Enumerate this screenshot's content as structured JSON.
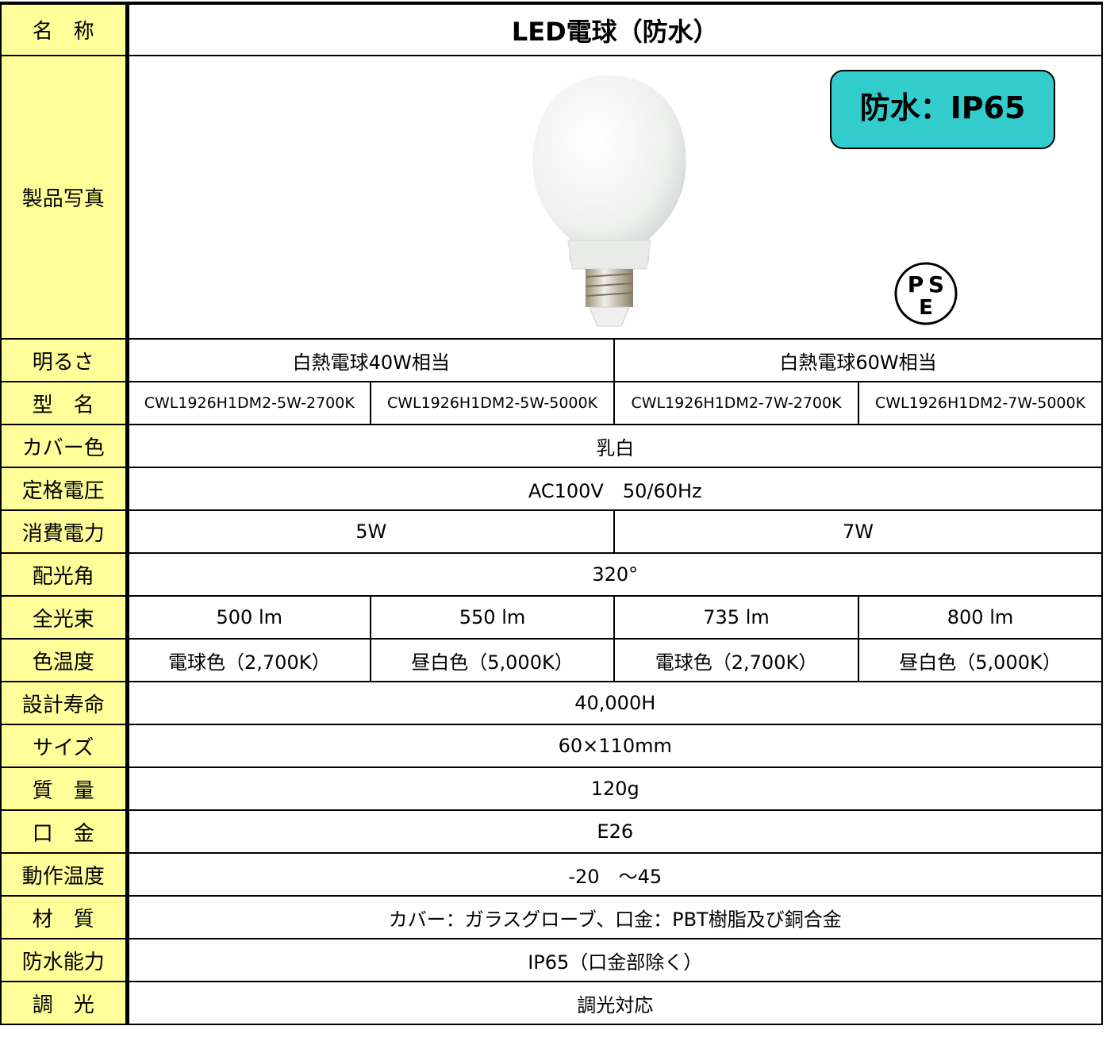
{
  "header": {
    "label": "名　称",
    "title": "LED電球（防水）"
  },
  "photo": {
    "label": "製品写真",
    "badge": "防水：IP65",
    "pse_mark": [
      "P",
      "S",
      "E"
    ]
  },
  "rows": [
    {
      "label": "明るさ",
      "cells": [
        "白熱電球40W相当",
        "白熱電球60W相当"
      ]
    },
    {
      "label": "型　名",
      "cells": [
        "CWL1926H1DM2-5W-2700K",
        "CWL1926H1DM2-5W-5000K",
        "CWL1926H1DM2-7W-2700K",
        "CWL1926H1DM2-7W-5000K"
      ]
    },
    {
      "label": "カバー色",
      "cells": [
        "乳白"
      ]
    },
    {
      "label": "定格電圧",
      "cells": [
        "AC100V　50/60Hz"
      ]
    },
    {
      "label": "消費電力",
      "cells": [
        "5W",
        "7W"
      ]
    },
    {
      "label": "配光角",
      "cells": [
        "320°"
      ]
    },
    {
      "label": "全光束",
      "cells": [
        "500 lm",
        "550 lm",
        "735 lm",
        "800 lm"
      ]
    },
    {
      "label": "色温度",
      "cells": [
        "電球色（2,700K）",
        "昼白色（5,000K）",
        "電球色（2,700K）",
        "昼白色（5,000K）"
      ]
    },
    {
      "label": "設計寿命",
      "cells": [
        "40,000H"
      ]
    },
    {
      "label": "サイズ",
      "cells": [
        "60×110mm"
      ]
    },
    {
      "label": "質　量",
      "cells": [
        "120g"
      ]
    },
    {
      "label": "口　金",
      "cells": [
        "E26"
      ]
    },
    {
      "label": "動作温度",
      "cells": [
        "-20　～45"
      ]
    },
    {
      "label": "材　質",
      "cells": [
        "カバー：ガラスグローブ、口金：PBT樹脂及び銅合金"
      ]
    },
    {
      "label": "防水能力",
      "cells": [
        "IP65（口金部除く）"
      ]
    },
    {
      "label": "調　光",
      "cells": [
        "調光対応"
      ]
    }
  ]
}
